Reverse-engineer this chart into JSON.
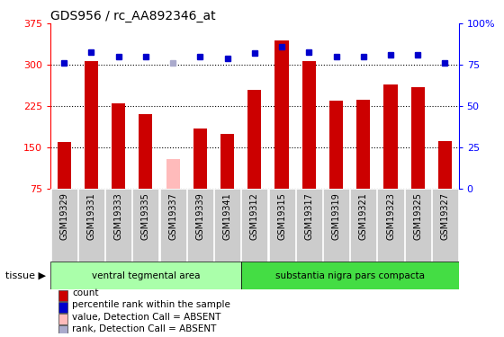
{
  "title": "GDS956 / rc_AA892346_at",
  "samples": [
    "GSM19329",
    "GSM19331",
    "GSM19333",
    "GSM19335",
    "GSM19337",
    "GSM19339",
    "GSM19341",
    "GSM19312",
    "GSM19315",
    "GSM19317",
    "GSM19319",
    "GSM19321",
    "GSM19323",
    "GSM19325",
    "GSM19327"
  ],
  "bar_values": [
    160,
    307,
    230,
    210,
    130,
    185,
    175,
    255,
    345,
    307,
    235,
    237,
    265,
    260,
    162
  ],
  "bar_colors": [
    "#cc0000",
    "#cc0000",
    "#cc0000",
    "#cc0000",
    "#ffbbbb",
    "#cc0000",
    "#cc0000",
    "#cc0000",
    "#cc0000",
    "#cc0000",
    "#cc0000",
    "#cc0000",
    "#cc0000",
    "#cc0000",
    "#cc0000"
  ],
  "percentile_values": [
    76,
    83,
    80,
    80,
    76,
    80,
    79,
    82,
    86,
    83,
    80,
    80,
    81,
    81,
    76
  ],
  "percentile_absent": [
    false,
    false,
    false,
    false,
    true,
    false,
    false,
    false,
    false,
    false,
    false,
    false,
    false,
    false,
    false
  ],
  "ylim_left": [
    75,
    375
  ],
  "ylim_right": [
    0,
    100
  ],
  "yticks_left": [
    75,
    150,
    225,
    300,
    375
  ],
  "yticks_right": [
    0,
    25,
    50,
    75,
    100
  ],
  "ytick_labels_right": [
    "0",
    "25",
    "50",
    "75",
    "100%"
  ],
  "groups": [
    {
      "label": "ventral tegmental area",
      "start": 0,
      "end": 7
    },
    {
      "label": "substantia nigra pars compacta",
      "start": 7,
      "end": 15
    }
  ],
  "group_colors": [
    "#aaffaa",
    "#44dd44"
  ],
  "tissue_label": "tissue",
  "bg_color": "#ffffff",
  "cell_bg": "#cccccc",
  "legend_items": [
    {
      "label": "count",
      "color": "#cc0000"
    },
    {
      "label": "percentile rank within the sample",
      "color": "#0000cc"
    },
    {
      "label": "value, Detection Call = ABSENT",
      "color": "#ffbbbb"
    },
    {
      "label": "rank, Detection Call = ABSENT",
      "color": "#aaaacc"
    }
  ]
}
